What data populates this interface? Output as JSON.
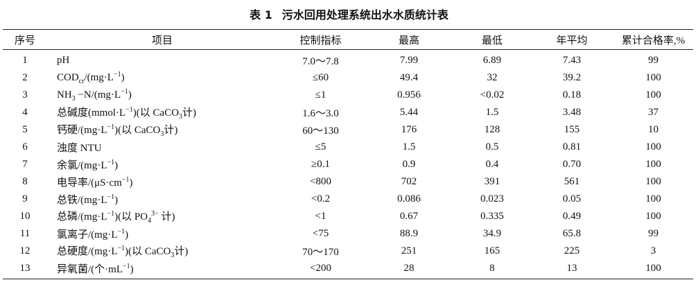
{
  "title": {
    "label": "表 1",
    "text": "污水回用处理系统出水水质统计表"
  },
  "table": {
    "header": [
      "序号",
      "项目",
      "控制指标",
      "最高",
      "最低",
      "年平均",
      "累计合格率,%"
    ],
    "rows": [
      {
        "no": "1",
        "item": [
          "pH"
        ],
        "limit": "7.0～7.8",
        "max": "7.99",
        "min": "6.89",
        "avg": "7.43",
        "rate": "99"
      },
      {
        "no": "2",
        "item": [
          "COD",
          {
            "sub": "cr"
          },
          "/(mg·L",
          {
            "sup": "−1"
          },
          ")"
        ],
        "limit": "≤60",
        "max": "49.4",
        "min": "32",
        "avg": "39.2",
        "rate": "100"
      },
      {
        "no": "3",
        "item": [
          "NH",
          {
            "sub": "3"
          },
          " −N/(mg·L",
          {
            "sup": "−1"
          },
          ")"
        ],
        "limit": "≤1",
        "max": "0.956",
        "min": "<0.02",
        "avg": "0.18",
        "rate": "100"
      },
      {
        "no": "4",
        "item": [
          "总碱度(mmol·L",
          {
            "sup": "−1"
          },
          ")(以 CaCO",
          {
            "sub": "3"
          },
          "计)"
        ],
        "limit": "1.6～3.0",
        "max": "5.44",
        "min": "1.5",
        "avg": "3.48",
        "rate": "37"
      },
      {
        "no": "5",
        "item": [
          "钙硬/(mg·L",
          {
            "sup": "−1"
          },
          ")(以 CaCO",
          {
            "sub": "3"
          },
          "计)"
        ],
        "limit": "60～130",
        "max": "176",
        "min": "128",
        "avg": "155",
        "rate": "10"
      },
      {
        "no": "6",
        "item": [
          "浊度 NTU"
        ],
        "limit": "≤5",
        "max": "1.5",
        "min": "0.5",
        "avg": "0.81",
        "rate": "100"
      },
      {
        "no": "7",
        "item": [
          "余氯/(mg·L",
          {
            "sup": "−1"
          },
          ")"
        ],
        "limit": "≥0.1",
        "max": "0.9",
        "min": "0.4",
        "avg": "0.70",
        "rate": "100"
      },
      {
        "no": "8",
        "item": [
          "电导率/(μS·cm",
          {
            "sup": "−1"
          },
          ")"
        ],
        "limit": "<800",
        "max": "702",
        "min": "391",
        "avg": "561",
        "rate": "100"
      },
      {
        "no": "9",
        "item": [
          "总铁/(mg·L",
          {
            "sup": "−1"
          },
          ")"
        ],
        "limit": "<0.2",
        "max": "0.086",
        "min": "0.023",
        "avg": "0.05",
        "rate": "100"
      },
      {
        "no": "10",
        "item": [
          "总磷/(mg·L",
          {
            "sup": "−1"
          },
          ")(以 PO",
          {
            "sub": "4"
          },
          {
            "sup": "3−"
          },
          " 计)"
        ],
        "limit": "<1",
        "max": "0.67",
        "min": "0.335",
        "avg": "0.49",
        "rate": "100"
      },
      {
        "no": "11",
        "item": [
          "氯离子/(mg·L",
          {
            "sup": "−1"
          },
          ")"
        ],
        "limit": "<75",
        "max": "88.9",
        "min": "34.9",
        "avg": "65.8",
        "rate": "99"
      },
      {
        "no": "12",
        "item": [
          "总硬度/(mg·L",
          {
            "sup": "−1"
          },
          ")(以 CaCO",
          {
            "sub": "3"
          },
          "计)"
        ],
        "limit": "70～170",
        "max": "251",
        "min": "165",
        "avg": "225",
        "rate": "3"
      },
      {
        "no": "13",
        "item": [
          "异氧菌/(个·mL",
          {
            "sup": "−1"
          },
          ")"
        ],
        "limit": "<200",
        "max": "28",
        "min": "8",
        "avg": "13",
        "rate": "100"
      }
    ]
  }
}
